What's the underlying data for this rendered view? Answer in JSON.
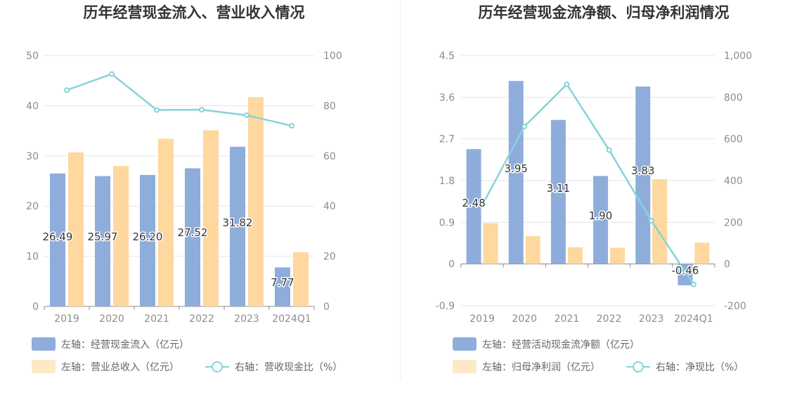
{
  "colors": {
    "bar_primary": "#8eaddb",
    "bar_secondary": "#fed89e",
    "line": "#86d3d8",
    "grid": "#e3e6ef",
    "axis": "#8c8c8c",
    "divider": "#eeeeee"
  },
  "chart_data": [
    {
      "type": "bar",
      "title": "历年经营现金流入、营业收入情况",
      "categories": [
        "2019",
        "2020",
        "2021",
        "2022",
        "2023",
        "2024Q1"
      ],
      "left_axis": {
        "ticks": [
          "0",
          "10",
          "20",
          "30",
          "40",
          "50"
        ],
        "range": [
          0,
          50
        ]
      },
      "right_axis": {
        "ticks": [
          "0",
          "20",
          "40",
          "60",
          "80",
          "100"
        ],
        "range": [
          0,
          100
        ]
      },
      "series": [
        {
          "name": "左轴：经营现金流入（亿元）",
          "kind": "bar",
          "axis": "left",
          "values": [
            26.49,
            25.97,
            26.2,
            27.52,
            31.82,
            7.77
          ],
          "labels": [
            "26.49",
            "25.97",
            "26.20",
            "27.52",
            "31.82",
            "7.77"
          ]
        },
        {
          "name": "左轴：营业总收入（亿元）",
          "kind": "bar",
          "axis": "left",
          "values": [
            30.7,
            28.0,
            33.4,
            35.1,
            41.7,
            10.8
          ]
        },
        {
          "name": "右轴：营收现金比（%）",
          "kind": "line",
          "axis": "right",
          "values": [
            86.2,
            92.6,
            78.3,
            78.4,
            76.2,
            72.0
          ]
        }
      ]
    },
    {
      "type": "bar",
      "title": "历年经营现金流净额、归母净利润情况",
      "categories": [
        "2019",
        "2020",
        "2021",
        "2022",
        "2023",
        "2024Q1"
      ],
      "left_axis": {
        "ticks": [
          "-0.9",
          "0",
          "0.9",
          "1.8",
          "2.7",
          "3.6",
          "4.5"
        ],
        "range": [
          -0.9,
          4.5
        ]
      },
      "right_axis": {
        "ticks": [
          "-200",
          "0",
          "200",
          "400",
          "600",
          "800",
          "1,000"
        ],
        "range": [
          -200,
          1000
        ]
      },
      "series": [
        {
          "name": "左轴：经营活动现金流净额（亿元）",
          "kind": "bar",
          "axis": "left",
          "values": [
            2.48,
            3.95,
            3.11,
            1.9,
            3.83,
            -0.46
          ],
          "labels": [
            "2.48",
            "3.95",
            "3.11",
            "1.90",
            "3.83",
            "-0.46"
          ]
        },
        {
          "name": "左轴：归母净利润（亿元）",
          "kind": "bar",
          "axis": "left",
          "values": [
            0.88,
            0.6,
            0.36,
            0.35,
            1.83,
            0.46
          ]
        },
        {
          "name": "右轴：净现比（%）",
          "kind": "line",
          "axis": "right",
          "values": [
            282,
            660,
            862,
            547,
            208,
            -98
          ]
        }
      ]
    }
  ]
}
